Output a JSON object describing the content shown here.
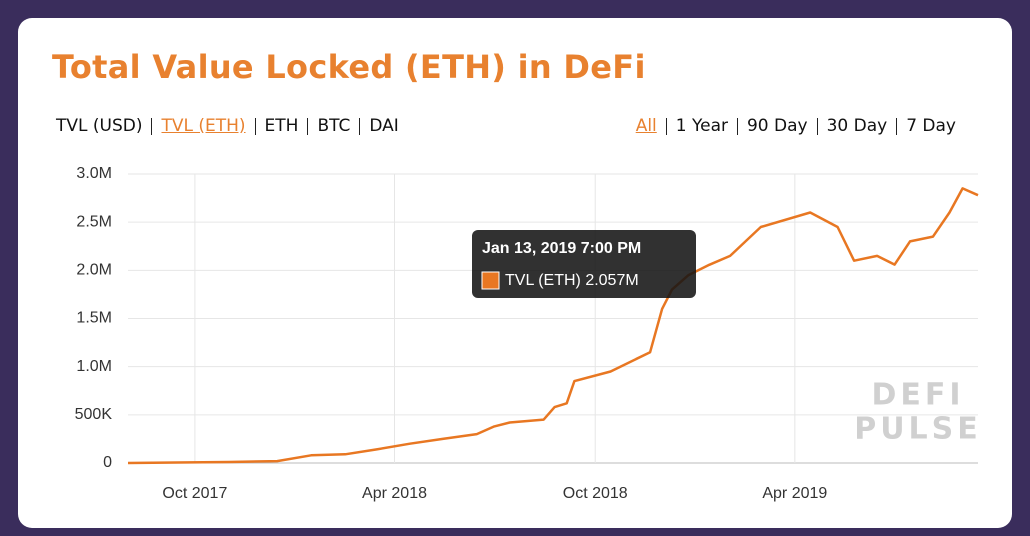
{
  "header": {
    "title": "Total Value Locked (ETH) in DeFi",
    "metrics": [
      "TVL (USD)",
      "TVL (ETH)",
      "ETH",
      "BTC",
      "DAI"
    ],
    "active_metric": 1,
    "ranges": [
      "All",
      "1 Year",
      "90 Day",
      "30 Day",
      "7 Day"
    ],
    "active_range": 0
  },
  "chart_data": {
    "type": "line",
    "x": [
      "2017-08-01",
      "2017-09-15",
      "2017-11-01",
      "2017-12-15",
      "2018-01-15",
      "2018-02-15",
      "2018-03-15",
      "2018-04-15",
      "2018-05-15",
      "2018-06-15",
      "2018-07-01",
      "2018-07-15",
      "2018-08-15",
      "2018-08-25",
      "2018-09-05",
      "2018-09-12",
      "2018-10-15",
      "2018-11-20",
      "2018-12-01",
      "2018-12-10",
      "2018-12-25",
      "2019-01-13",
      "2019-02-01",
      "2019-02-15",
      "2019-03-01",
      "2019-04-15",
      "2019-05-10",
      "2019-05-25",
      "2019-06-15",
      "2019-07-01",
      "2019-07-15",
      "2019-08-05",
      "2019-08-20",
      "2019-09-01",
      "2019-09-15"
    ],
    "series": [
      {
        "name": "TVL (ETH)",
        "color": "#e87722",
        "values": [
          0,
          5000,
          10000,
          20000,
          80000,
          90000,
          140000,
          200000,
          250000,
          300000,
          380000,
          420000,
          450000,
          580000,
          620000,
          850000,
          950000,
          1150000,
          1600000,
          1800000,
          1950000,
          2057000,
          2150000,
          2300000,
          2450000,
          2600000,
          2450000,
          2100000,
          2150000,
          2060000,
          2300000,
          2350000,
          2600000,
          2850000,
          2780000
        ]
      }
    ],
    "xlim": [
      "2017-08-01",
      "2019-09-15"
    ],
    "xticks": [
      {
        "value": "2017-10-01",
        "label": "Oct 2017"
      },
      {
        "value": "2018-04-01",
        "label": "Apr 2018"
      },
      {
        "value": "2018-10-01",
        "label": "Oct 2018"
      },
      {
        "value": "2019-04-01",
        "label": "Apr 2019"
      }
    ],
    "ylim": [
      0,
      3000000
    ],
    "yticks": [
      0,
      {
        "value": 500000,
        "label": "500K"
      },
      {
        "value": 1000000,
        "label": "1.0M"
      },
      {
        "value": 1500000,
        "label": "1.5M"
      },
      {
        "value": 2000000,
        "label": "2.0M"
      },
      {
        "value": 2500000,
        "label": "2.5M"
      },
      {
        "value": 3000000,
        "label": "3.0M"
      }
    ],
    "grid": true,
    "tooltip": {
      "date": "Jan 13, 2019 7:00 PM",
      "series": "TVL (ETH)",
      "value": 2057000,
      "value_label": "2.057M"
    },
    "watermark": [
      "DEFI",
      "PULSE"
    ]
  }
}
